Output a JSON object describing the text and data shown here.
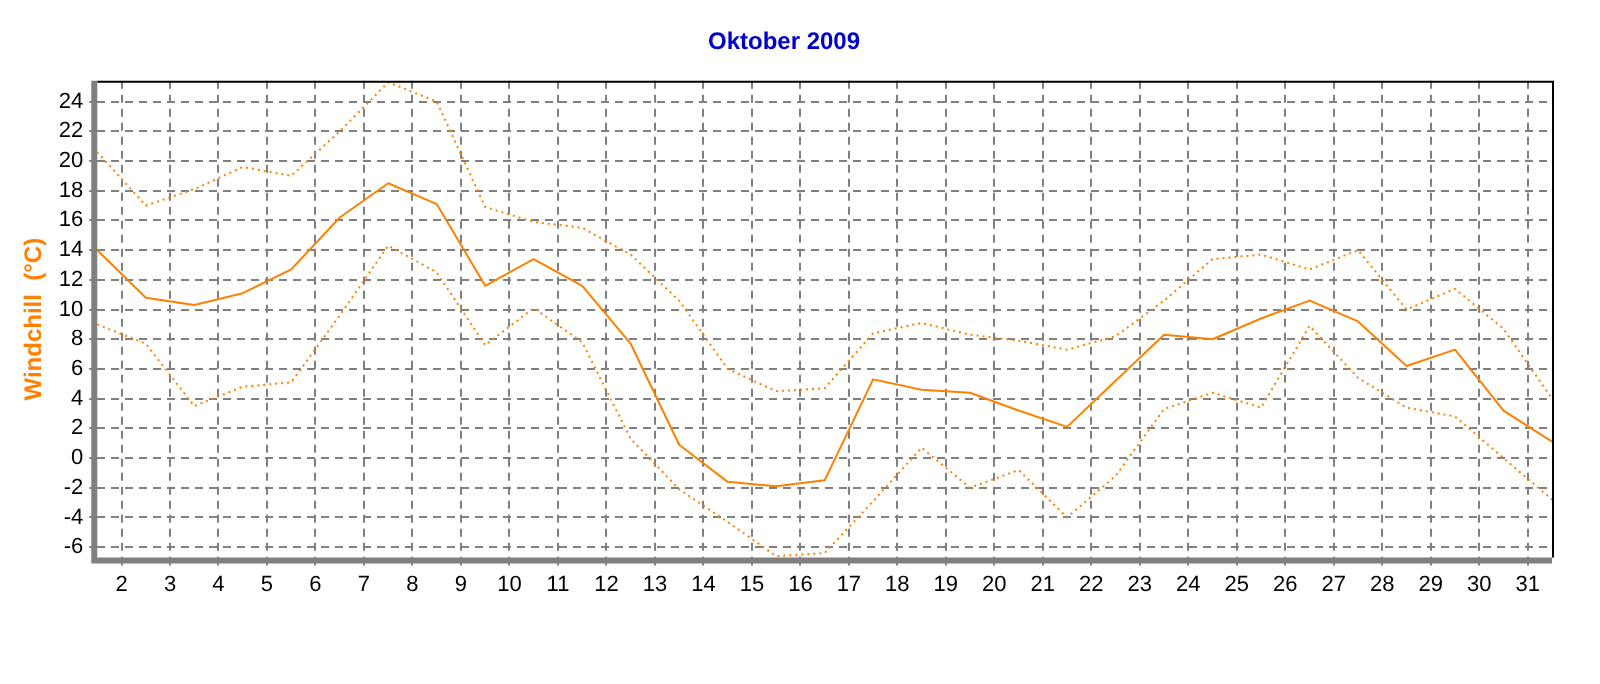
{
  "chart_data": {
    "type": "line",
    "title": "Oktober 2009",
    "ylabel": "Windchill  (°C)",
    "x": [
      1.5,
      2.5,
      3.5,
      4.5,
      5.5,
      6.5,
      7.5,
      8.5,
      9.5,
      10.5,
      11.5,
      12.5,
      13.5,
      14.5,
      15.5,
      16.5,
      17.5,
      18.5,
      19.5,
      20.5,
      21.5,
      22.5,
      23.5,
      24.5,
      25.5,
      26.5,
      27.5,
      28.5,
      29.5,
      30.5,
      31.5
    ],
    "xlim": [
      1.5,
      31.5
    ],
    "xticks": [
      2,
      3,
      4,
      5,
      6,
      7,
      8,
      9,
      10,
      11,
      12,
      13,
      14,
      15,
      16,
      17,
      18,
      19,
      20,
      21,
      22,
      23,
      24,
      25,
      26,
      27,
      28,
      29,
      30,
      31
    ],
    "ylim": [
      -6.7,
      25.4
    ],
    "yticks": [
      -6,
      -4,
      -2,
      0,
      2,
      4,
      6,
      8,
      10,
      12,
      14,
      16,
      18,
      20,
      22,
      24
    ],
    "grid": true,
    "legend": false,
    "marker": "none",
    "series": [
      {
        "color": "#ff8000",
        "line_style": "dotted",
        "values": [
          20.6,
          17.0,
          18.1,
          19.6,
          19.0,
          22.0,
          25.3,
          24.0,
          16.9,
          15.9,
          15.5,
          13.7,
          10.6,
          6.0,
          4.5,
          4.7,
          8.4,
          9.1,
          8.3,
          7.9,
          7.3,
          8.2,
          10.6,
          13.4,
          13.7,
          12.7,
          14.0,
          10.0,
          11.4,
          8.7,
          4.0
        ]
      },
      {
        "color": "#ff8000",
        "line_style": "solid",
        "values": [
          14.0,
          10.8,
          10.3,
          11.1,
          12.7,
          16.2,
          18.5,
          17.1,
          11.6,
          13.4,
          11.6,
          7.7,
          0.9,
          -1.6,
          -1.9,
          -1.5,
          5.3,
          4.6,
          4.4,
          3.2,
          2.1,
          5.2,
          8.3,
          8.0,
          9.4,
          10.6,
          9.2,
          6.2,
          7.3,
          3.2,
          1.1
        ]
      },
      {
        "color": "#ff8000",
        "line_style": "dotted",
        "values": [
          9.0,
          7.7,
          3.5,
          4.8,
          5.1,
          9.6,
          14.3,
          12.5,
          7.6,
          10.1,
          7.8,
          1.3,
          -2.1,
          -4.3,
          -6.6,
          -6.4,
          -2.9,
          0.7,
          -2.0,
          -0.8,
          -4.0,
          -1.2,
          3.3,
          4.4,
          3.4,
          8.9,
          5.4,
          3.4,
          2.8,
          0.0,
          -2.8
        ]
      }
    ]
  }
}
